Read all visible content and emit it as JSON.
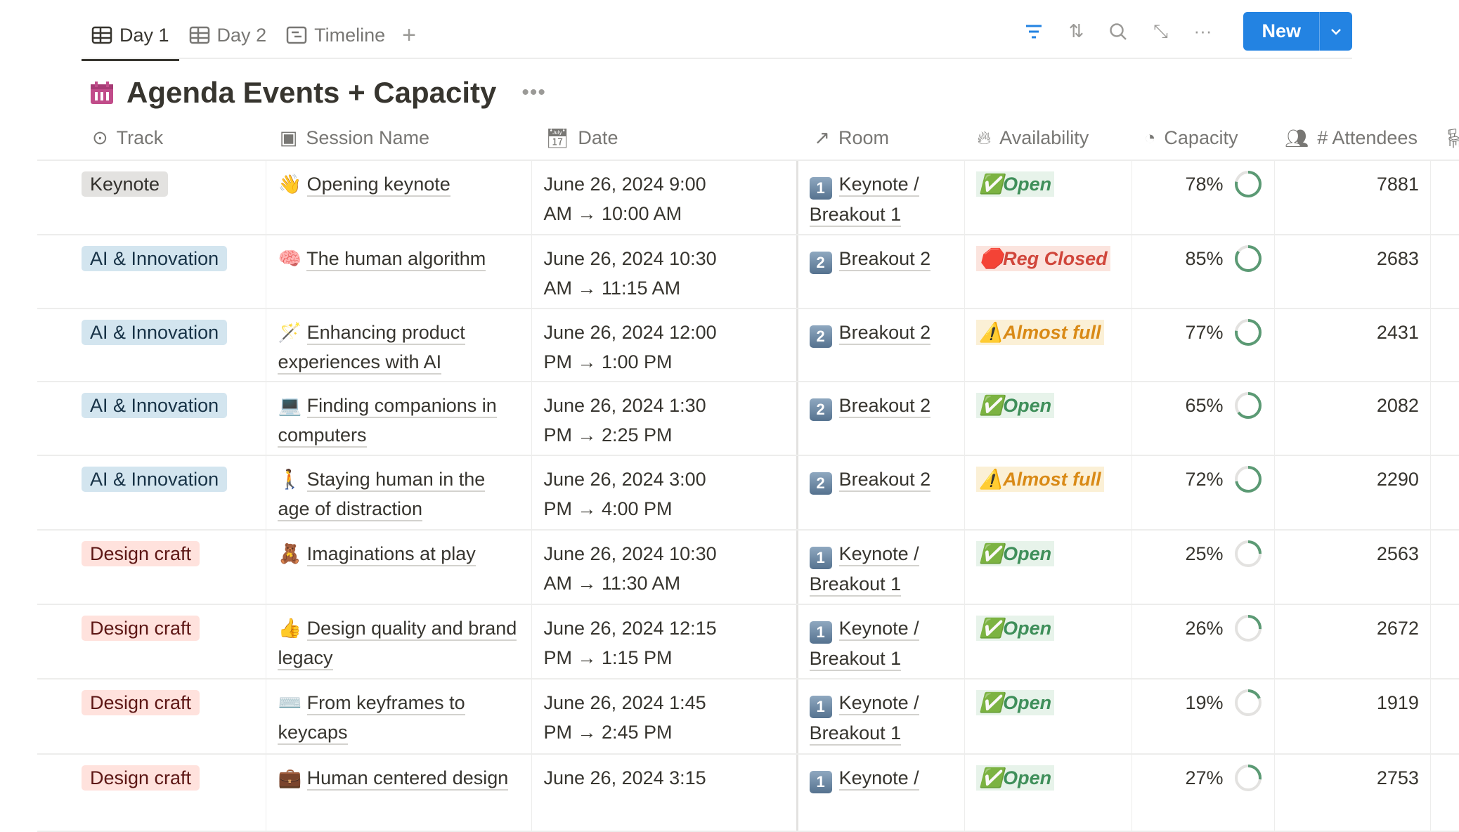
{
  "tabs": [
    {
      "label": "Day 1",
      "icon": "table-icon",
      "active": true
    },
    {
      "label": "Day 2",
      "icon": "table-icon"
    },
    {
      "label": "Timeline",
      "icon": "timeline-icon"
    }
  ],
  "toolbar": {
    "new_label": "New"
  },
  "page": {
    "title": "Agenda Events + Capacity",
    "icon": "calendar-icon"
  },
  "columns": [
    "Track",
    "Session Name",
    "Date",
    "Room",
    "Availability",
    "Capacity",
    "# Attendees"
  ],
  "colors": {
    "accent": "#2383e2",
    "ring": "#5b9a74",
    "open": "#3f8f5a",
    "closed": "#d0463b",
    "almost": "#d98a17"
  },
  "rows": [
    {
      "track": "Keynote",
      "emoji": "👋",
      "session": "Opening keynote",
      "date": "June 26, 2024 9:00\nAM → 10:00 AM",
      "room_num": "1",
      "room": "Keynote / Breakout 1",
      "avail": "Open",
      "avail_emoji": "✅",
      "capacity": "78%",
      "cap": 78,
      "attendees": "7881"
    },
    {
      "track": "AI & Innovation",
      "emoji": "🧠",
      "session": "The human algorithm",
      "date": "June 26, 2024 10:30\nAM → 11:15 AM",
      "room_num": "2",
      "room": "Breakout 2",
      "avail": "Reg Closed",
      "avail_emoji": "🛑",
      "capacity": "85%",
      "cap": 85,
      "attendees": "2683"
    },
    {
      "track": "AI & Innovation",
      "emoji": "🪄",
      "session": "Enhancing product experiences with AI",
      "date": "June 26, 2024 12:00\nPM → 1:00 PM",
      "room_num": "2",
      "room": "Breakout 2",
      "avail": "Almost full",
      "avail_emoji": "⚠️",
      "capacity": "77%",
      "cap": 77,
      "attendees": "2431"
    },
    {
      "track": "AI & Innovation",
      "emoji": "💻",
      "session": "Finding companions in computers",
      "date": "June 26, 2024 1:30\nPM → 2:25 PM",
      "room_num": "2",
      "room": "Breakout 2",
      "avail": "Open",
      "avail_emoji": "✅",
      "capacity": "65%",
      "cap": 65,
      "attendees": "2082"
    },
    {
      "track": "AI & Innovation",
      "emoji": "🚶",
      "session": "Staying human in the age of distraction",
      "date": "June 26, 2024 3:00\nPM → 4:00 PM",
      "room_num": "2",
      "room": "Breakout 2",
      "avail": "Almost full",
      "avail_emoji": "⚠️",
      "capacity": "72%",
      "cap": 72,
      "attendees": "2290"
    },
    {
      "track": "Design craft",
      "emoji": "🧸",
      "session": "Imaginations at play",
      "date": "June 26, 2024 10:30\nAM → 11:30 AM",
      "room_num": "1",
      "room": "Keynote / Breakout 1",
      "avail": "Open",
      "avail_emoji": "✅",
      "capacity": "25%",
      "cap": 25,
      "attendees": "2563"
    },
    {
      "track": "Design craft",
      "emoji": "👍",
      "session": "Design quality and brand legacy",
      "date": "June 26, 2024 12:15\nPM → 1:15 PM",
      "room_num": "1",
      "room": "Keynote / Breakout 1",
      "avail": "Open",
      "avail_emoji": "✅",
      "capacity": "26%",
      "cap": 26,
      "attendees": "2672"
    },
    {
      "track": "Design craft",
      "emoji": "⌨️",
      "session": "From keyframes to keycaps",
      "date": "June 26, 2024 1:45\nPM → 2:45 PM",
      "room_num": "1",
      "room": "Keynote / Breakout 1",
      "avail": "Open",
      "avail_emoji": "✅",
      "capacity": "19%",
      "cap": 19,
      "attendees": "1919"
    },
    {
      "track": "Design craft",
      "emoji": "💼",
      "session": "Human centered design",
      "date": "June 26, 2024 3:15",
      "room_num": "1",
      "room": "Keynote /",
      "avail": "Open",
      "avail_emoji": "✅",
      "capacity": "27%",
      "cap": 27,
      "attendees": "2753"
    }
  ]
}
